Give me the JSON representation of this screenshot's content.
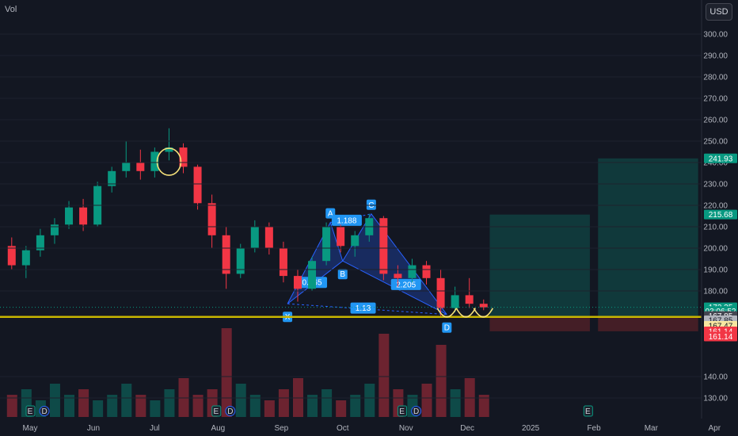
{
  "header": {
    "volume_label": "Vol",
    "currency_button": "USD"
  },
  "chart_data": {
    "type": "candlestick",
    "y_axis": {
      "ticks": [
        130,
        140,
        180,
        190,
        200,
        210,
        220,
        230,
        240,
        250,
        260,
        270,
        280,
        290,
        300
      ],
      "range": [
        125,
        305
      ]
    },
    "x_axis": {
      "labels": [
        "May",
        "Jun",
        "Jul",
        "Aug",
        "Sep",
        "Oct",
        "Nov",
        "Dec",
        "2025",
        "Feb",
        "Mar",
        "Apr"
      ]
    },
    "price_series": [
      [
        "2024-04-22",
        201,
        205,
        190,
        192
      ],
      [
        "2024-04-29",
        192,
        201,
        186,
        199
      ],
      [
        "2024-05-06",
        199,
        209,
        196,
        206
      ],
      [
        "2024-05-13",
        206,
        214,
        202,
        211
      ],
      [
        "2024-05-20",
        211,
        222,
        209,
        219
      ],
      [
        "2024-05-27",
        219,
        223,
        208,
        211
      ],
      [
        "2024-06-03",
        211,
        231,
        210,
        229
      ],
      [
        "2024-06-10",
        229,
        238,
        226,
        236
      ],
      [
        "2024-06-17",
        236,
        250,
        233,
        240
      ],
      [
        "2024-06-24",
        240,
        246,
        232,
        236
      ],
      [
        "2024-07-01",
        236,
        247,
        233,
        245
      ],
      [
        "2024-07-08",
        245,
        256,
        241,
        247
      ],
      [
        "2024-07-15",
        247,
        249,
        235,
        238
      ],
      [
        "2024-07-22",
        238,
        239,
        218,
        221
      ],
      [
        "2024-07-29",
        221,
        225,
        200,
        206
      ],
      [
        "2024-08-05",
        206,
        210,
        181,
        188
      ],
      [
        "2024-08-12",
        188,
        202,
        186,
        200
      ],
      [
        "2024-08-19",
        200,
        213,
        198,
        210
      ],
      [
        "2024-08-26",
        210,
        212,
        197,
        200
      ],
      [
        "2024-09-02",
        200,
        203,
        184,
        187
      ],
      [
        "2024-09-09",
        187,
        190,
        175,
        181
      ],
      [
        "2024-09-16",
        181,
        196,
        180,
        194
      ],
      [
        "2024-09-23",
        194,
        212,
        192,
        210
      ],
      [
        "2024-09-30",
        210,
        211,
        198,
        201
      ],
      [
        "2024-10-07",
        201,
        208,
        196,
        206
      ],
      [
        "2024-10-14",
        206,
        216,
        203,
        214
      ],
      [
        "2024-10-21",
        214,
        215,
        185,
        188
      ],
      [
        "2024-10-28",
        188,
        192,
        182,
        186
      ],
      [
        "2024-11-04",
        186,
        195,
        184,
        192
      ],
      [
        "2024-11-11",
        192,
        194,
        183,
        186
      ],
      [
        "2024-11-18",
        186,
        190,
        168,
        172
      ],
      [
        "2024-11-25",
        172,
        182,
        170,
        178
      ],
      [
        "2024-12-02",
        178,
        186,
        172,
        174
      ],
      [
        "2024-12-09",
        174,
        176,
        171,
        172.35
      ]
    ],
    "volume_series": [
      4,
      5,
      3,
      6,
      4,
      5,
      3,
      4,
      6,
      4,
      3,
      5,
      7,
      4,
      5,
      16,
      6,
      4,
      3,
      5,
      7,
      4,
      5,
      3,
      4,
      6,
      15,
      5,
      4,
      6,
      13,
      5,
      7,
      4
    ],
    "harmonic_pattern": {
      "points": [
        {
          "name": "X",
          "date": "2024-09-04",
          "value": 174
        },
        {
          "name": "A",
          "date": "2024-09-25",
          "value": 212
        },
        {
          "name": "B",
          "date": "2024-10-01",
          "value": 194
        },
        {
          "name": "C",
          "date": "2024-10-15",
          "value": 216
        },
        {
          "name": "D",
          "date": "2024-11-21",
          "value": 169
        }
      ],
      "ratios": [
        {
          "label": "0.465",
          "date": "2024-09-16",
          "value": 184
        },
        {
          "label": "1.188",
          "date": "2024-10-03",
          "value": 213
        },
        {
          "label": "2.205",
          "date": "2024-11-01",
          "value": 183
        },
        {
          "label": "1.13",
          "date": "2024-10-11",
          "value": 172
        }
      ]
    },
    "support_line": 167.85,
    "target_zones": [
      {
        "top": 215.68,
        "bottom": 167.85,
        "stop": 161.14,
        "from": "2024-12-12",
        "to": "2025-01-30"
      },
      {
        "top": 241.93,
        "bottom": 167.85,
        "stop": 161.14,
        "from": "2025-02-03",
        "to": "2025-03-24"
      }
    ],
    "price_tags": [
      {
        "label": "241.93",
        "value": 241.93,
        "color": "#089981",
        "text_color": "#ffffff"
      },
      {
        "label": "215.68",
        "value": 215.68,
        "color": "#089981",
        "text_color": "#ffffff"
      },
      {
        "label": "172.35",
        "value": 172.35,
        "color": "#089981",
        "text_color": "#ffffff"
      },
      {
        "label": "03:06:52",
        "value": 170.6,
        "color": "#089981",
        "text_color": "#ffffff"
      },
      {
        "label": "167.85",
        "value": 168.3,
        "color": "#434651",
        "text_color": "#ffffff"
      },
      {
        "label": "167.85",
        "value": 166.3,
        "color": "#b2b5be",
        "text_color": "#131722"
      },
      {
        "label": "167.47",
        "value": 163.7,
        "color": "#f7e6a0",
        "text_color": "#131722"
      },
      {
        "label": "161.14",
        "value": 161.1,
        "color": "#f23645",
        "text_color": "#ffffff"
      },
      {
        "label": "161.14",
        "value": 158.7,
        "color": "#f23645",
        "text_color": "#ffffff"
      }
    ],
    "event_markers": [
      {
        "label": "E",
        "date": "2024-05-01"
      },
      {
        "label": "D",
        "date": "2024-05-08"
      },
      {
        "label": "E",
        "date": "2024-07-31"
      },
      {
        "label": "D",
        "date": "2024-08-07"
      },
      {
        "label": "E",
        "date": "2024-10-30"
      },
      {
        "label": "D",
        "date": "2024-11-06"
      },
      {
        "label": "E",
        "date": "2025-01-29"
      }
    ],
    "colors": {
      "up": "#089981",
      "down": "#f23645",
      "pattern": "#2962ff",
      "support": "#c8b500",
      "profit": "#11403f",
      "loss": "#4a1f27"
    }
  }
}
